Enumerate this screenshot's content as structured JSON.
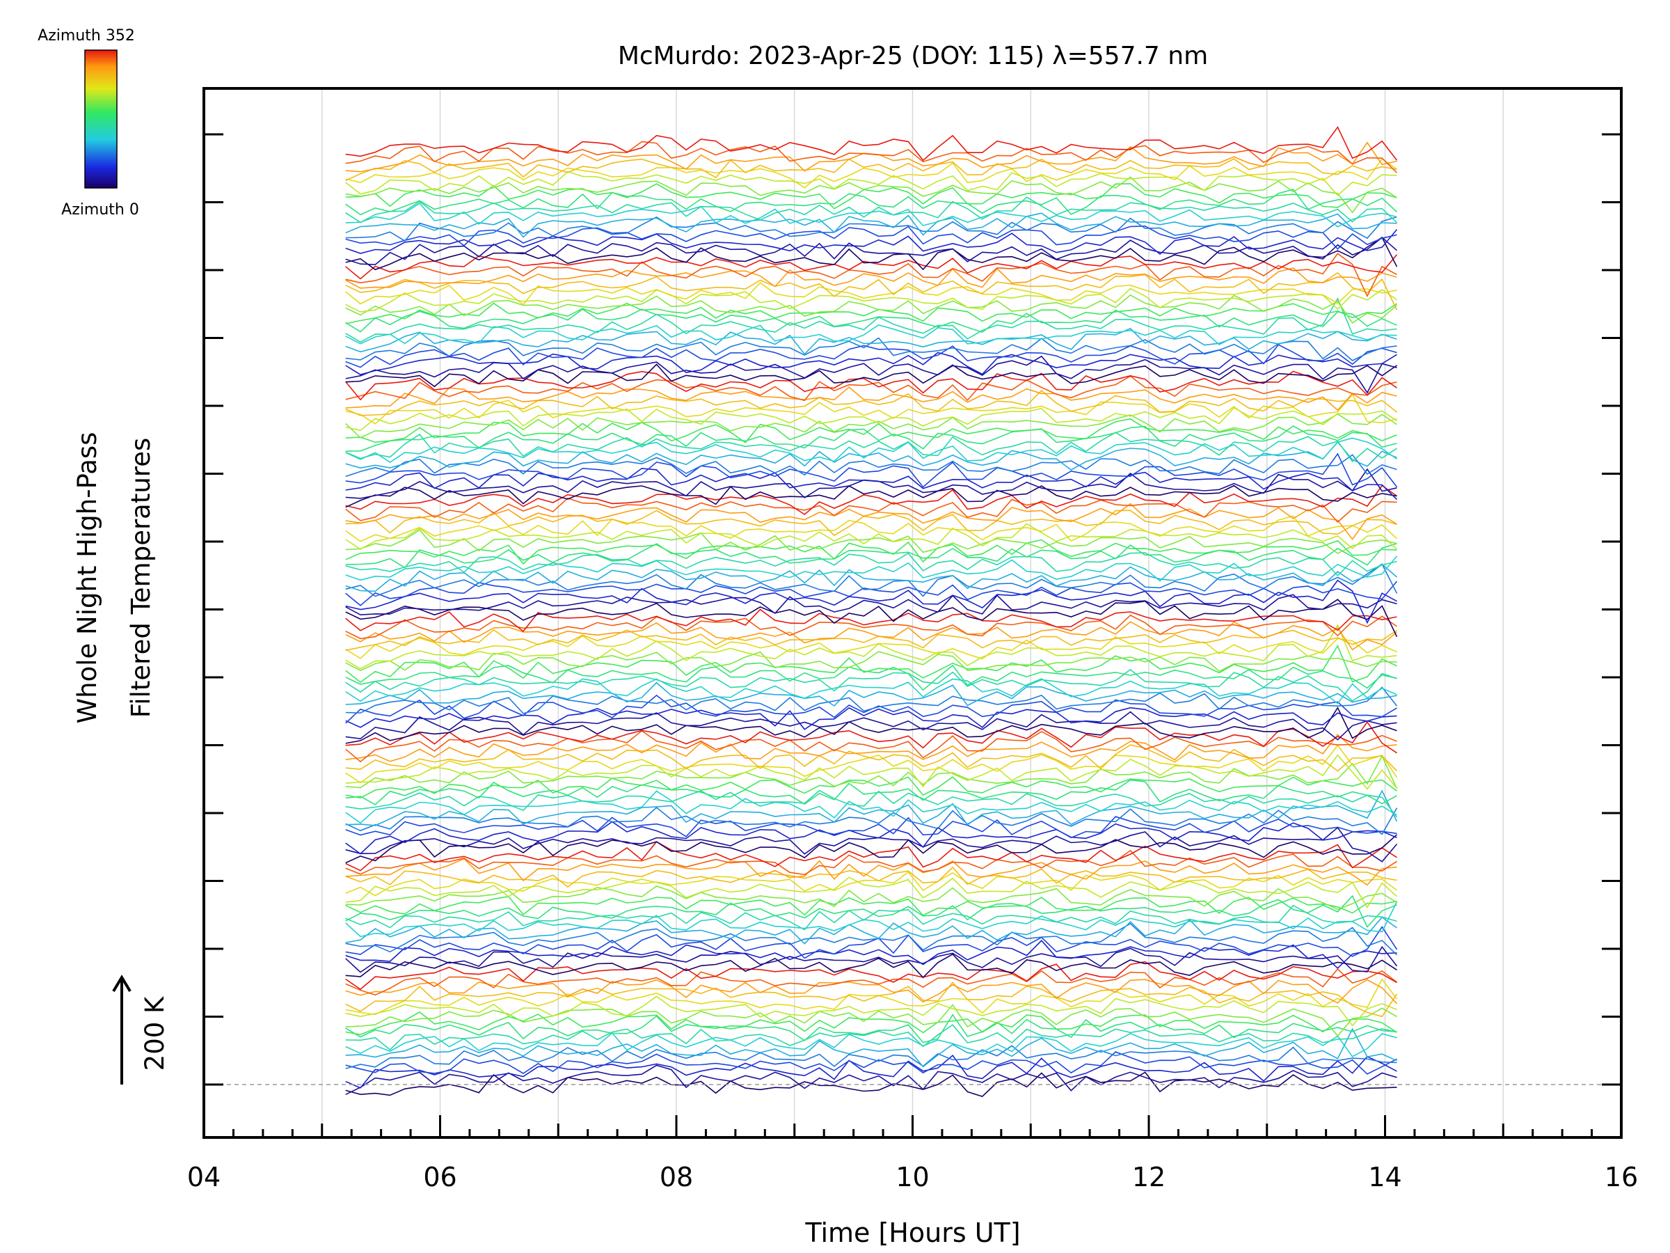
{
  "chart_data": {
    "type": "line",
    "title": "McMurdo: 2023-Apr-25 (DOY: 115) λ=557.7 nm",
    "xlabel": "Time [Hours UT]",
    "ylabel_line1": "Whole Night High-Pass",
    "ylabel_line2": "Filtered Temperatures",
    "scale_label": "200 K",
    "xlim": [
      4,
      16
    ],
    "xticks": [
      "04",
      "06",
      "08",
      "10",
      "12",
      "14",
      "16"
    ],
    "grid": "vertical",
    "colorbar": {
      "top_label": "Azimuth 352",
      "bottom_label": "Azimuth 0",
      "colormap": "rainbow"
    },
    "time_range": [
      5.2,
      14.1
    ],
    "num_traces": 136,
    "trace_groups": 8,
    "traces_per_group": 17,
    "azimuth_step": 22
  }
}
